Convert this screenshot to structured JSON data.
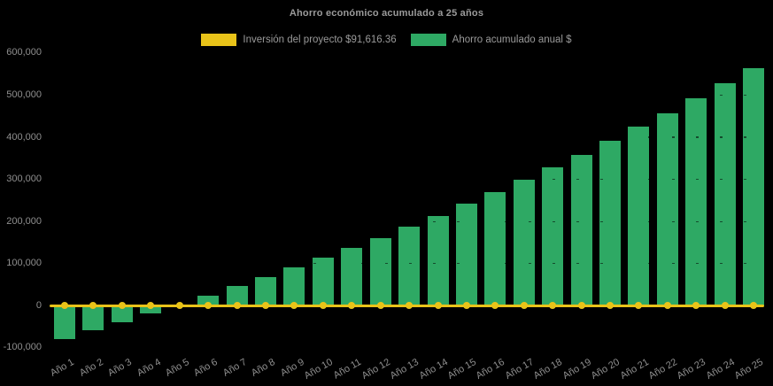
{
  "chart": {
    "title": "Ahorro económico acumulado a 25 años",
    "legend": [
      {
        "label": "Inversión del proyecto $91,616.36",
        "color": "#E9C319"
      },
      {
        "label": "Ahorro acumulado anual $",
        "color": "#2EA964"
      }
    ]
  },
  "chart_data": {
    "type": "bar",
    "title": "Ahorro económico acumulado a 25 años",
    "categories": [
      "Año 1",
      "Año 2",
      "Año 3",
      "Año 4",
      "Año 5",
      "Año 6",
      "Año 7",
      "Año 8",
      "Año 9",
      "Año 10",
      "Año 11",
      "Año 12",
      "Año 13",
      "Año 14",
      "Año 15",
      "Año 16",
      "Año 17",
      "Año 18",
      "Año 19",
      "Año 20",
      "Año 21",
      "Año 22",
      "Año 23",
      "Año 24",
      "Año 25"
    ],
    "series": [
      {
        "name": "Ahorro acumulado anual $",
        "type": "bar",
        "color": "#2EA964",
        "values": [
          -78500,
          -59000,
          -39000,
          -18000,
          3000,
          24000,
          46000,
          68000,
          90500,
          113500,
          137000,
          160000,
          188500,
          214000,
          242000,
          270500,
          300000,
          328000,
          359000,
          391500,
          424500,
          456500,
          492000,
          529000,
          564000
        ]
      },
      {
        "name": "Inversión del proyecto $91,616.36",
        "type": "line",
        "color": "#E9C319",
        "marker": "circle",
        "values": [
          0,
          0,
          0,
          0,
          0,
          0,
          0,
          0,
          0,
          0,
          0,
          0,
          0,
          0,
          0,
          0,
          0,
          0,
          0,
          0,
          0,
          0,
          0,
          0,
          0
        ]
      }
    ],
    "xlabel": "",
    "ylabel": "",
    "ylim": [
      -100000,
      600000
    ],
    "ytick_step": 100000,
    "ytick_labels": [
      "-100,000",
      "0",
      "100,000",
      "200,000",
      "300,000",
      "400,000",
      "500,000",
      "600,000"
    ],
    "legend_position": "top-center",
    "grid": "faint dark dashed horizontal lines at 100,000 intervals, visible only over bars",
    "background": "#000000",
    "axis_text_color": "#8F8F8F",
    "title_color": "#9B9B9B"
  }
}
